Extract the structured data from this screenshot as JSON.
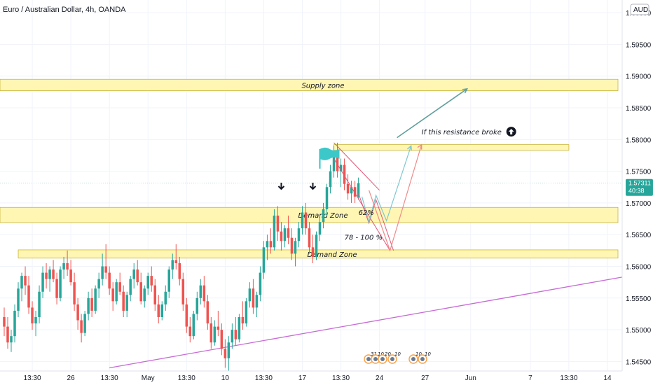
{
  "title": "Euro / Australian Dollar, 4h, OANDA",
  "currency_badge": "AUD",
  "chart_data": {
    "type": "candlestick",
    "title": "Euro / Australian Dollar, 4h, OANDA",
    "y_axis": {
      "position": "right",
      "range": [
        1.5435,
        1.602
      ],
      "ticks": [
        {
          "value": 1.545,
          "label": "1.54500"
        },
        {
          "value": 1.55,
          "label": "1.55000"
        },
        {
          "value": 1.555,
          "label": "1.55500"
        },
        {
          "value": 1.56,
          "label": "1.56000"
        },
        {
          "value": 1.565,
          "label": "1.56500"
        },
        {
          "value": 1.57,
          "label": "1.57000"
        },
        {
          "value": 1.575,
          "label": "1.57500"
        },
        {
          "value": 1.58,
          "label": "1.58000"
        },
        {
          "value": 1.585,
          "label": "1.58500"
        },
        {
          "value": 1.59,
          "label": "1.59000"
        },
        {
          "value": 1.595,
          "label": "1.59500"
        },
        {
          "value": 1.6,
          "label": "1.60000"
        }
      ]
    },
    "x_axis": {
      "bar_range": [
        0,
        175
      ],
      "ticks": [
        {
          "bar": 8,
          "label": "13:30"
        },
        {
          "bar": 19,
          "label": "26"
        },
        {
          "bar": 30,
          "label": "13:30"
        },
        {
          "bar": 41,
          "label": "May"
        },
        {
          "bar": 52,
          "label": "13:30"
        },
        {
          "bar": 63,
          "label": "10"
        },
        {
          "bar": 74,
          "label": "13:30"
        },
        {
          "bar": 85,
          "label": "17"
        },
        {
          "bar": 96,
          "label": "13:30"
        },
        {
          "bar": 107,
          "label": "24"
        },
        {
          "bar": 120,
          "label": "27"
        },
        {
          "bar": 133,
          "label": "Jun"
        },
        {
          "bar": 150,
          "label": "7"
        },
        {
          "bar": 161,
          "label": "13:30"
        },
        {
          "bar": 172,
          "label": "14"
        }
      ]
    },
    "last_price": {
      "value": 1.57311,
      "label": "1.57311",
      "countdown": "40:38"
    },
    "colors": {
      "up": "#26a69a",
      "down": "#ef5350",
      "zone_fill": "#fff6b3",
      "zone_border": "#c9b53a",
      "price_line": "#26a69a",
      "trendline": "#c76ad6",
      "projection_down": "#e05577",
      "projection_teal": "#7ec8d0",
      "projection_red": "#f08a8a",
      "arrow_upper": "#5f9e9c"
    },
    "candles_ohlc": [
      [
        1.552,
        1.5535,
        1.549,
        1.5505
      ],
      [
        1.5505,
        1.552,
        1.547,
        1.548
      ],
      [
        1.548,
        1.55,
        1.5465,
        1.549
      ],
      [
        1.549,
        1.554,
        1.548,
        1.553
      ],
      [
        1.553,
        1.5575,
        1.552,
        1.5565
      ],
      [
        1.5565,
        1.559,
        1.5545,
        1.5585
      ],
      [
        1.5585,
        1.56,
        1.5555,
        1.557
      ],
      [
        1.557,
        1.5585,
        1.5525,
        1.5535
      ],
      [
        1.5535,
        1.5545,
        1.55,
        1.551
      ],
      [
        1.551,
        1.553,
        1.549,
        1.552
      ],
      [
        1.552,
        1.557,
        1.551,
        1.556
      ],
      [
        1.556,
        1.56,
        1.555,
        1.559
      ],
      [
        1.559,
        1.5605,
        1.5565,
        1.558
      ],
      [
        1.558,
        1.56,
        1.556,
        1.5595
      ],
      [
        1.5595,
        1.561,
        1.5575,
        1.558
      ],
      [
        1.558,
        1.559,
        1.554,
        1.555
      ],
      [
        1.555,
        1.56,
        1.5545,
        1.5595
      ],
      [
        1.5595,
        1.5615,
        1.558,
        1.5605
      ],
      [
        1.5605,
        1.5625,
        1.5585,
        1.5595
      ],
      [
        1.5595,
        1.561,
        1.557,
        1.5575
      ],
      [
        1.5575,
        1.559,
        1.553,
        1.554
      ],
      [
        1.554,
        1.555,
        1.55,
        1.5515
      ],
      [
        1.5515,
        1.5525,
        1.548,
        1.5495
      ],
      [
        1.5495,
        1.553,
        1.549,
        1.5525
      ],
      [
        1.5525,
        1.556,
        1.5515,
        1.555
      ],
      [
        1.555,
        1.5565,
        1.552,
        1.553
      ],
      [
        1.553,
        1.557,
        1.5525,
        1.5565
      ],
      [
        1.5565,
        1.559,
        1.555,
        1.558
      ],
      [
        1.558,
        1.562,
        1.557,
        1.56
      ],
      [
        1.56,
        1.5635,
        1.558,
        1.559
      ],
      [
        1.559,
        1.56,
        1.5555,
        1.5565
      ],
      [
        1.5565,
        1.5575,
        1.553,
        1.5545
      ],
      [
        1.5545,
        1.558,
        1.554,
        1.5575
      ],
      [
        1.5575,
        1.559,
        1.5555,
        1.556
      ],
      [
        1.556,
        1.557,
        1.552,
        1.553
      ],
      [
        1.553,
        1.556,
        1.552,
        1.5555
      ],
      [
        1.5555,
        1.5585,
        1.5545,
        1.558
      ],
      [
        1.558,
        1.5605,
        1.5565,
        1.5595
      ],
      [
        1.5595,
        1.561,
        1.557,
        1.5575
      ],
      [
        1.5575,
        1.559,
        1.554,
        1.5545
      ],
      [
        1.5545,
        1.557,
        1.5535,
        1.5565
      ],
      [
        1.5565,
        1.559,
        1.5555,
        1.5585
      ],
      [
        1.5585,
        1.56,
        1.556,
        1.557
      ],
      [
        1.557,
        1.558,
        1.553,
        1.554
      ],
      [
        1.554,
        1.5555,
        1.551,
        1.552
      ],
      [
        1.552,
        1.5545,
        1.5515,
        1.554
      ],
      [
        1.554,
        1.557,
        1.553,
        1.556
      ],
      [
        1.556,
        1.56,
        1.555,
        1.5595
      ],
      [
        1.5595,
        1.562,
        1.558,
        1.561
      ],
      [
        1.561,
        1.5635,
        1.5595,
        1.5605
      ],
      [
        1.5605,
        1.5615,
        1.557,
        1.558
      ],
      [
        1.558,
        1.559,
        1.553,
        1.554
      ],
      [
        1.554,
        1.555,
        1.5495,
        1.5505
      ],
      [
        1.5505,
        1.552,
        1.548,
        1.549
      ],
      [
        1.549,
        1.553,
        1.5485,
        1.5525
      ],
      [
        1.5525,
        1.556,
        1.5515,
        1.555
      ],
      [
        1.555,
        1.558,
        1.554,
        1.557
      ],
      [
        1.557,
        1.5585,
        1.5535,
        1.5545
      ],
      [
        1.5545,
        1.5555,
        1.55,
        1.551
      ],
      [
        1.551,
        1.552,
        1.547,
        1.548
      ],
      [
        1.548,
        1.5515,
        1.5475,
        1.5505
      ],
      [
        1.5505,
        1.553,
        1.549,
        1.55
      ],
      [
        1.55,
        1.551,
        1.546,
        1.547
      ],
      [
        1.547,
        1.5485,
        1.544,
        1.5455
      ],
      [
        1.5455,
        1.549,
        1.5435,
        1.548
      ],
      [
        1.548,
        1.551,
        1.547,
        1.55
      ],
      [
        1.55,
        1.552,
        1.5475,
        1.5485
      ],
      [
        1.5485,
        1.5525,
        1.548,
        1.552
      ],
      [
        1.552,
        1.5545,
        1.55,
        1.551
      ],
      [
        1.551,
        1.555,
        1.5505,
        1.5545
      ],
      [
        1.5545,
        1.5575,
        1.5535,
        1.5565
      ],
      [
        1.5565,
        1.558,
        1.5525,
        1.5535
      ],
      [
        1.5535,
        1.556,
        1.552,
        1.5555
      ],
      [
        1.5555,
        1.56,
        1.5545,
        1.559
      ],
      [
        1.559,
        1.564,
        1.558,
        1.563
      ],
      [
        1.563,
        1.565,
        1.561,
        1.564
      ],
      [
        1.564,
        1.566,
        1.562,
        1.563
      ],
      [
        1.563,
        1.569,
        1.5625,
        1.568
      ],
      [
        1.568,
        1.5695,
        1.564,
        1.5655
      ],
      [
        1.5655,
        1.567,
        1.5625,
        1.564
      ],
      [
        1.564,
        1.5665,
        1.563,
        1.566
      ],
      [
        1.566,
        1.568,
        1.5635,
        1.5645
      ],
      [
        1.5645,
        1.566,
        1.561,
        1.562
      ],
      [
        1.562,
        1.5645,
        1.56,
        1.564
      ],
      [
        1.564,
        1.567,
        1.563,
        1.566
      ],
      [
        1.566,
        1.5695,
        1.565,
        1.5685
      ],
      [
        1.5685,
        1.57,
        1.565,
        1.566
      ],
      [
        1.566,
        1.567,
        1.562,
        1.563
      ],
      [
        1.563,
        1.565,
        1.5605,
        1.5615
      ],
      [
        1.5615,
        1.5655,
        1.561,
        1.565
      ],
      [
        1.565,
        1.568,
        1.564,
        1.567
      ],
      [
        1.567,
        1.57,
        1.566,
        1.569
      ],
      [
        1.569,
        1.573,
        1.568,
        1.5725
      ],
      [
        1.5725,
        1.576,
        1.5715,
        1.575
      ],
      [
        1.575,
        1.579,
        1.574,
        1.578
      ],
      [
        1.578,
        1.5795,
        1.574,
        1.575
      ],
      [
        1.575,
        1.577,
        1.5725,
        1.576
      ],
      [
        1.576,
        1.577,
        1.572,
        1.573
      ],
      [
        1.573,
        1.5745,
        1.5705,
        1.5715
      ],
      [
        1.5715,
        1.5735,
        1.57,
        1.5725
      ],
      [
        1.5725,
        1.5735,
        1.57,
        1.571
      ],
      [
        1.571,
        1.574,
        1.5705,
        1.5731
      ]
    ],
    "zones": [
      {
        "label": "Supply zone",
        "high": 1.5895,
        "low": 1.5877,
        "bar_from": 0,
        "bar_to": 175
      },
      {
        "label": "",
        "high": 1.5792,
        "low": 1.5783,
        "bar_from": 94,
        "bar_to": 161
      },
      {
        "label": "Demand Zone",
        "high": 1.5693,
        "low": 1.5669,
        "bar_from": 0,
        "bar_to": 175
      },
      {
        "label": "Demand Zone",
        "high": 1.5626,
        "low": 1.5613,
        "bar_from": 4,
        "bar_to": 175
      }
    ],
    "annotations": [
      {
        "text": "If this resistance broke",
        "bar": 119,
        "price": 1.5808
      },
      {
        "text": "62%",
        "bar": 101,
        "price": 1.5681
      },
      {
        "text": "78 - 100 %",
        "bar": 97,
        "price": 1.5642
      }
    ],
    "marker_arrows_bars": [
      79,
      88
    ],
    "flag_bar": 90
  },
  "event_icons": [
    "31",
    "10",
    "20",
    "10",
    "10",
    "10"
  ]
}
